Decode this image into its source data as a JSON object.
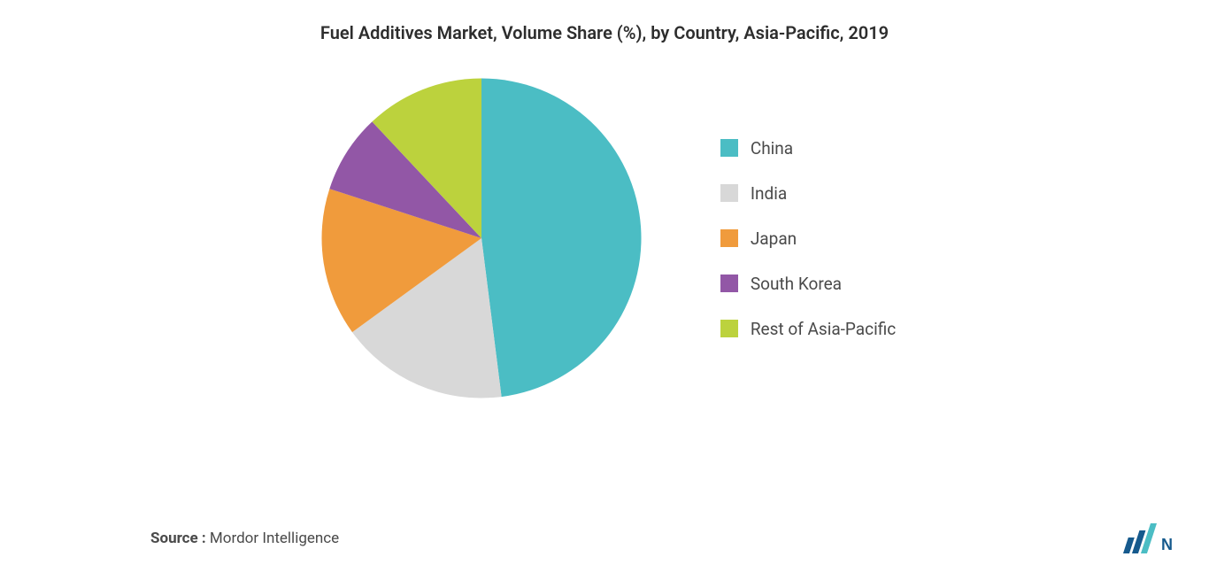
{
  "chart": {
    "type": "pie",
    "title": "Fuel Additives Market, Volume Share (%), by Country, Asia-Pacific, 2019",
    "title_fontsize": 20,
    "title_color": "#2d2d2d",
    "background_color": "#ffffff",
    "pie_radius": 190,
    "slices": [
      {
        "label": "China",
        "value": 48,
        "color": "#4bbdc4"
      },
      {
        "label": "India",
        "value": 17,
        "color": "#d8d8d8"
      },
      {
        "label": "Japan",
        "value": 15,
        "color": "#f09b3c"
      },
      {
        "label": "South Korea",
        "value": 8,
        "color": "#9257a6"
      },
      {
        "label": "Rest of Asia-Pacific",
        "value": 12,
        "color": "#bcd23d"
      }
    ],
    "legend": {
      "position": "right",
      "fontsize": 19,
      "label_color": "#4a4a4a",
      "swatch_size": 20
    }
  },
  "footer": {
    "source_label": "Source :",
    "source_value": " Mordor Intelligence",
    "fontsize": 17,
    "color": "#4a4a4a"
  },
  "logo": {
    "name": "mordor-intelligence-logo",
    "bar_colors": [
      "#165a8d",
      "#165a8d",
      "#4bbdc4"
    ],
    "letter_color": "#165a8d"
  }
}
